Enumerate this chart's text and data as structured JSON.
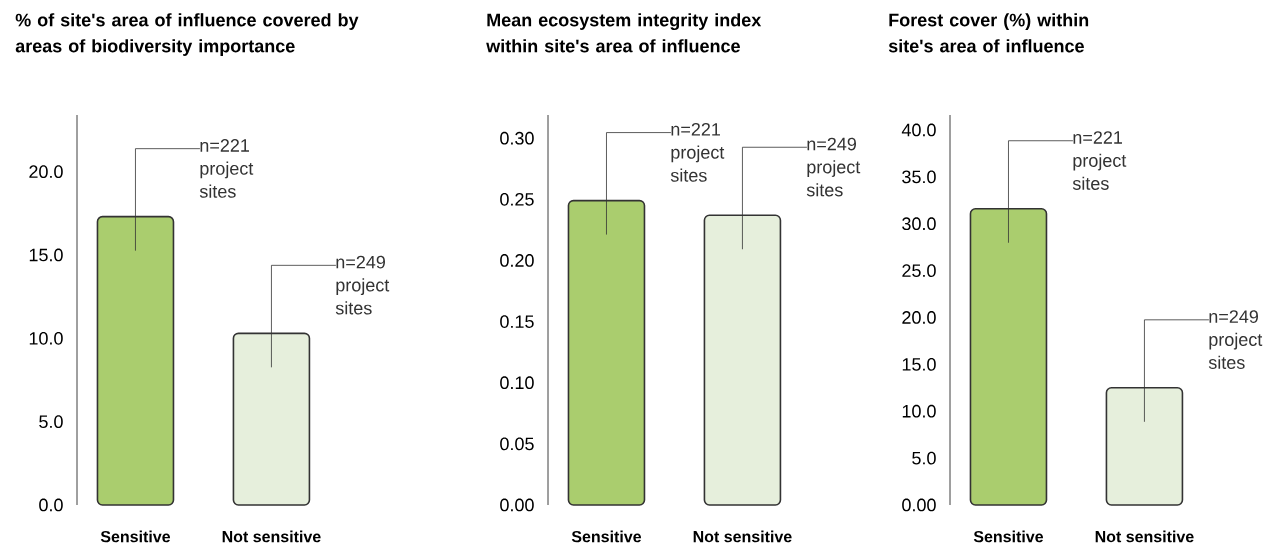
{
  "chart_data": [
    {
      "type": "bar",
      "title": "% of site's area of influence covered by areas of biodiversity importance",
      "categories": [
        "Sensitive",
        "Not sensitive"
      ],
      "values": [
        17.3,
        10.3
      ],
      "colors": [
        "#aacd6e",
        "#e6efdc"
      ],
      "ylim": [
        0,
        23.4
      ],
      "yticks": [
        {
          "value": 0,
          "label": "0.0"
        },
        {
          "value": 5,
          "label": "5.0"
        },
        {
          "value": 10,
          "label": "10.0"
        },
        {
          "value": 15,
          "label": "15.0"
        },
        {
          "value": 20,
          "label": "20.0"
        }
      ],
      "annotations": [
        "n=221 project sites",
        "n=249 project sites"
      ]
    },
    {
      "type": "bar",
      "title": "Mean ecosystem integrity index within site's area of influence",
      "categories": [
        "Sensitive",
        "Not sensitive"
      ],
      "values": [
        0.249,
        0.237
      ],
      "colors": [
        "#aacd6e",
        "#e6efdc"
      ],
      "ylim": [
        0,
        0.319
      ],
      "yticks": [
        {
          "value": 0,
          "label": "0.00"
        },
        {
          "value": 0.05,
          "label": "0.05"
        },
        {
          "value": 0.1,
          "label": "0.10"
        },
        {
          "value": 0.15,
          "label": "0.15"
        },
        {
          "value": 0.2,
          "label": "0.20"
        },
        {
          "value": 0.25,
          "label": "0.25"
        },
        {
          "value": 0.3,
          "label": "0.30"
        }
      ],
      "annotations": [
        "n=221 project sites",
        "n=249 project sites"
      ]
    },
    {
      "type": "bar",
      "title": "Forest cover (%) within site's area of influence",
      "categories": [
        "Sensitive",
        "Not sensitive"
      ],
      "values": [
        31.6,
        12.5
      ],
      "colors": [
        "#aacd6e",
        "#e6efdc"
      ],
      "ylim": [
        0,
        41.6
      ],
      "yticks": [
        {
          "value": 0,
          "label": "0.00"
        },
        {
          "value": 5,
          "label": "5.0"
        },
        {
          "value": 10,
          "label": "10.0"
        },
        {
          "value": 15,
          "label": "15.0"
        },
        {
          "value": 20,
          "label": "20.0"
        },
        {
          "value": 25,
          "label": "25.0"
        },
        {
          "value": 30,
          "label": "30.0"
        },
        {
          "value": 35,
          "label": "35.0"
        },
        {
          "value": 40,
          "label": "40.0"
        }
      ],
      "annotations": [
        "n=221 project sites",
        "n=249 project sites"
      ]
    }
  ]
}
